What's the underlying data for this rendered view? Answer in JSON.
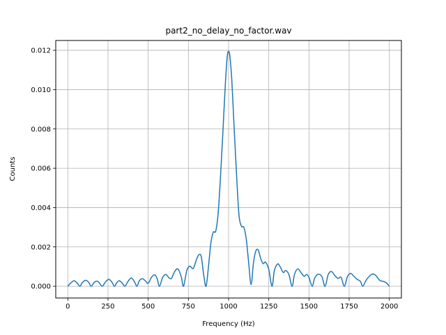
{
  "chart_data": {
    "type": "line",
    "title": "part2_no_delay_no_factor.wav",
    "xlabel": "Frequency (Hz)",
    "ylabel": "Counts",
    "xlim": [
      -75,
      2075
    ],
    "ylim": [
      -0.0006,
      0.0125
    ],
    "xticks": [
      0,
      250,
      500,
      750,
      1000,
      1250,
      1500,
      1750,
      2000
    ],
    "xtick_labels": [
      "0",
      "250",
      "500",
      "750",
      "1000",
      "1250",
      "1500",
      "1750",
      "2000"
    ],
    "yticks": [
      0,
      0.002,
      0.004,
      0.006,
      0.008,
      0.01,
      0.012
    ],
    "ytick_labels": [
      "0.000",
      "0.002",
      "0.004",
      "0.006",
      "0.008",
      "0.010",
      "0.012"
    ],
    "grid": true,
    "line_color": "#1f77b4",
    "series": [
      {
        "points": [
          [
            0,
            0.0
          ],
          [
            20,
            0.00018
          ],
          [
            40,
            0.00028
          ],
          [
            60,
            0.00014
          ],
          [
            75,
            0.0
          ],
          [
            90,
            0.00018
          ],
          [
            110,
            0.0003
          ],
          [
            130,
            0.0002
          ],
          [
            145,
            0.0
          ],
          [
            165,
            0.0002
          ],
          [
            185,
            0.00025
          ],
          [
            200,
            0.00012
          ],
          [
            215,
            0.0
          ],
          [
            235,
            0.00022
          ],
          [
            255,
            0.00035
          ],
          [
            275,
            0.0002
          ],
          [
            290,
            0.0
          ],
          [
            305,
            0.00018
          ],
          [
            320,
            0.00028
          ],
          [
            340,
            0.00015
          ],
          [
            355,
            0.0
          ],
          [
            375,
            0.00025
          ],
          [
            395,
            0.00042
          ],
          [
            415,
            0.00022
          ],
          [
            430,
            0.0
          ],
          [
            445,
            0.00028
          ],
          [
            465,
            0.00038
          ],
          [
            485,
            0.00025
          ],
          [
            500,
            0.00015
          ],
          [
            520,
            0.00045
          ],
          [
            540,
            0.00058
          ],
          [
            555,
            0.0004
          ],
          [
            570,
            0.0
          ],
          [
            590,
            0.00045
          ],
          [
            610,
            0.0006
          ],
          [
            630,
            0.00042
          ],
          [
            645,
            0.0004
          ],
          [
            665,
            0.00075
          ],
          [
            685,
            0.00088
          ],
          [
            705,
            0.0005
          ],
          [
            720,
            0.0
          ],
          [
            740,
            0.0008
          ],
          [
            760,
            0.00102
          ],
          [
            780,
            0.0009
          ],
          [
            800,
            0.00135
          ],
          [
            815,
            0.0016
          ],
          [
            830,
            0.0015
          ],
          [
            845,
            0.0006
          ],
          [
            860,
            0.0
          ],
          [
            875,
            0.001
          ],
          [
            890,
            0.0022
          ],
          [
            905,
            0.00275
          ],
          [
            920,
            0.0028
          ],
          [
            935,
            0.0037
          ],
          [
            950,
            0.0056
          ],
          [
            965,
            0.0079
          ],
          [
            980,
            0.0103
          ],
          [
            992,
            0.0117
          ],
          [
            1000,
            0.01195
          ],
          [
            1008,
            0.0117
          ],
          [
            1020,
            0.0105
          ],
          [
            1035,
            0.008
          ],
          [
            1050,
            0.0056
          ],
          [
            1065,
            0.0036
          ],
          [
            1080,
            0.00305
          ],
          [
            1095,
            0.003
          ],
          [
            1110,
            0.0024
          ],
          [
            1125,
            0.0012
          ],
          [
            1140,
            8e-05
          ],
          [
            1155,
            0.0012
          ],
          [
            1170,
            0.0018
          ],
          [
            1185,
            0.00183
          ],
          [
            1200,
            0.0014
          ],
          [
            1215,
            0.00115
          ],
          [
            1230,
            0.00122
          ],
          [
            1250,
            0.00085
          ],
          [
            1270,
            0.0
          ],
          [
            1285,
            0.0008
          ],
          [
            1305,
            0.00113
          ],
          [
            1320,
            0.001
          ],
          [
            1340,
            0.0007
          ],
          [
            1355,
            0.0008
          ],
          [
            1375,
            0.0006
          ],
          [
            1395,
            0.0
          ],
          [
            1410,
            0.0006
          ],
          [
            1430,
            0.00088
          ],
          [
            1450,
            0.0007
          ],
          [
            1470,
            0.0005
          ],
          [
            1485,
            0.0006
          ],
          [
            1500,
            0.00045
          ],
          [
            1520,
            0.0
          ],
          [
            1535,
            0.0004
          ],
          [
            1555,
            0.0006
          ],
          [
            1580,
            0.0005
          ],
          [
            1600,
            0.0
          ],
          [
            1620,
            0.0006
          ],
          [
            1640,
            0.00075
          ],
          [
            1660,
            0.00055
          ],
          [
            1680,
            0.0004
          ],
          [
            1700,
            0.00045
          ],
          [
            1720,
            0.0
          ],
          [
            1740,
            0.0005
          ],
          [
            1760,
            0.00065
          ],
          [
            1780,
            0.0005
          ],
          [
            1800,
            0.00035
          ],
          [
            1820,
            0.00025
          ],
          [
            1835,
            0.0
          ],
          [
            1855,
            0.0003
          ],
          [
            1875,
            0.0005
          ],
          [
            1895,
            0.00062
          ],
          [
            1915,
            0.00055
          ],
          [
            1940,
            0.0003
          ],
          [
            1960,
            0.00025
          ],
          [
            1980,
            0.00018
          ],
          [
            2000,
            0.0
          ]
        ]
      }
    ]
  }
}
